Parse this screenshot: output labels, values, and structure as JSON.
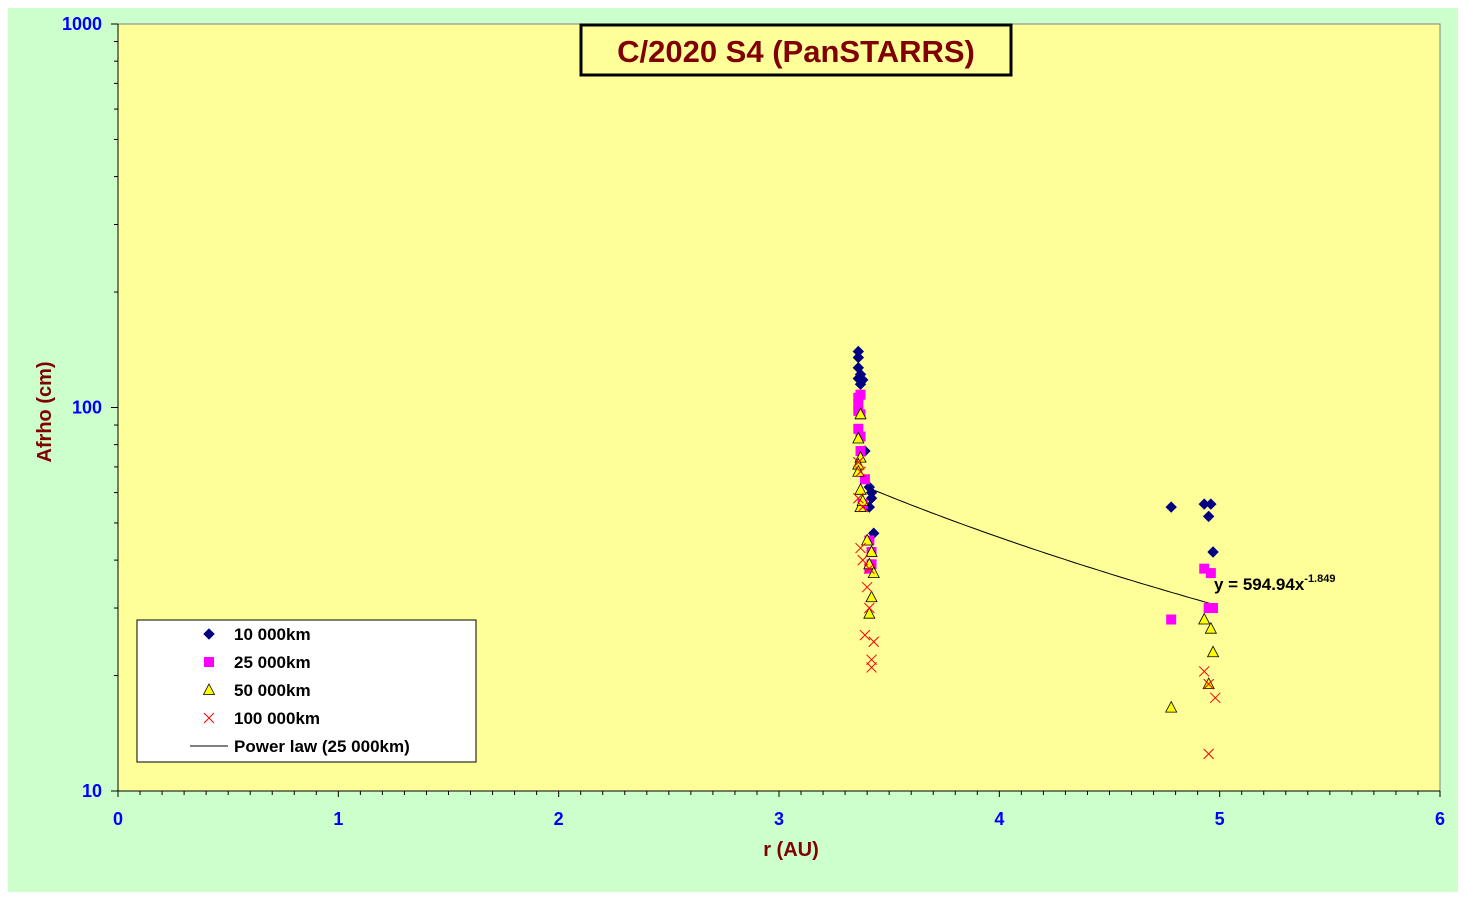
{
  "chart_data": {
    "type": "scatter",
    "title": "C/2020 S4 (PanSTARRS)",
    "xlabel": "r (AU)",
    "ylabel": "Afrho (cm)",
    "xlim": [
      0,
      6
    ],
    "ylim": [
      10,
      1000
    ],
    "y_scale": "log",
    "x_ticks": [
      "0",
      "1",
      "2",
      "3",
      "4",
      "5",
      "6"
    ],
    "y_ticks": [
      "10",
      "100",
      "1000"
    ],
    "grid": false,
    "legend_position": "bottom-left",
    "colors": {
      "background": "#CCFFCC",
      "plot_area": "#FFFF99",
      "axis_text": "#0000FF",
      "label_text": "#800000"
    },
    "series": [
      {
        "name": "10 000km",
        "marker": "diamond",
        "color": "#000080",
        "points": [
          [
            3.36,
            140
          ],
          [
            3.36,
            135
          ],
          [
            3.36,
            127
          ],
          [
            3.37,
            122
          ],
          [
            3.36,
            119
          ],
          [
            3.38,
            118
          ],
          [
            3.37,
            115
          ],
          [
            3.39,
            77
          ],
          [
            3.41,
            62
          ],
          [
            3.42,
            60
          ],
          [
            3.42,
            58
          ],
          [
            3.41,
            55
          ],
          [
            3.43,
            47
          ],
          [
            4.78,
            55
          ],
          [
            4.93,
            56
          ],
          [
            4.96,
            56
          ],
          [
            4.95,
            52
          ],
          [
            4.97,
            42
          ]
        ]
      },
      {
        "name": "25 000km",
        "marker": "square",
        "color": "#FF00FF",
        "points": [
          [
            3.36,
            106
          ],
          [
            3.37,
            108
          ],
          [
            3.36,
            102
          ],
          [
            3.36,
            98
          ],
          [
            3.37,
            96
          ],
          [
            3.36,
            88
          ],
          [
            3.37,
            84
          ],
          [
            3.37,
            77
          ],
          [
            3.39,
            65
          ],
          [
            3.38,
            56
          ],
          [
            3.41,
            45
          ],
          [
            3.42,
            42
          ],
          [
            3.42,
            39
          ],
          [
            3.41,
            38
          ],
          [
            4.78,
            28
          ],
          [
            4.93,
            38
          ],
          [
            4.96,
            37
          ],
          [
            4.95,
            30
          ],
          [
            4.97,
            30
          ]
        ]
      },
      {
        "name": "50 000km",
        "marker": "triangle",
        "color": "#FFFF00",
        "points": [
          [
            3.37,
            96
          ],
          [
            3.36,
            83
          ],
          [
            3.37,
            74
          ],
          [
            3.36,
            71
          ],
          [
            3.36,
            68
          ],
          [
            3.37,
            61
          ],
          [
            3.37,
            55
          ],
          [
            3.38,
            57
          ],
          [
            3.4,
            45
          ],
          [
            3.42,
            42
          ],
          [
            3.41,
            39
          ],
          [
            3.43,
            37
          ],
          [
            3.42,
            32
          ],
          [
            3.41,
            29
          ],
          [
            4.78,
            16.5
          ],
          [
            4.93,
            28
          ],
          [
            4.96,
            26.5
          ],
          [
            4.97,
            23
          ],
          [
            4.95,
            19
          ]
        ]
      },
      {
        "name": "100 000km",
        "marker": "x",
        "color": "#FF0000",
        "points": [
          [
            3.36,
            72
          ],
          [
            3.37,
            68
          ],
          [
            3.36,
            58
          ],
          [
            3.38,
            55
          ],
          [
            3.37,
            43
          ],
          [
            3.38,
            40
          ],
          [
            3.41,
            38
          ],
          [
            3.4,
            34
          ],
          [
            3.41,
            30
          ],
          [
            3.39,
            25.5
          ],
          [
            3.43,
            24.5
          ],
          [
            3.42,
            22
          ],
          [
            3.42,
            21
          ],
          [
            4.93,
            20.5
          ],
          [
            4.95,
            19
          ],
          [
            4.98,
            17.5
          ],
          [
            4.95,
            12.5
          ]
        ]
      }
    ],
    "trendline": {
      "name": "Power law (25 000km)",
      "type": "power",
      "a": 594.94,
      "b": -1.849,
      "x_range": [
        3.41,
        4.97
      ],
      "color": "#000000",
      "equation_prefix": "y = 594.94x",
      "equation_exponent": "-1.849"
    }
  }
}
